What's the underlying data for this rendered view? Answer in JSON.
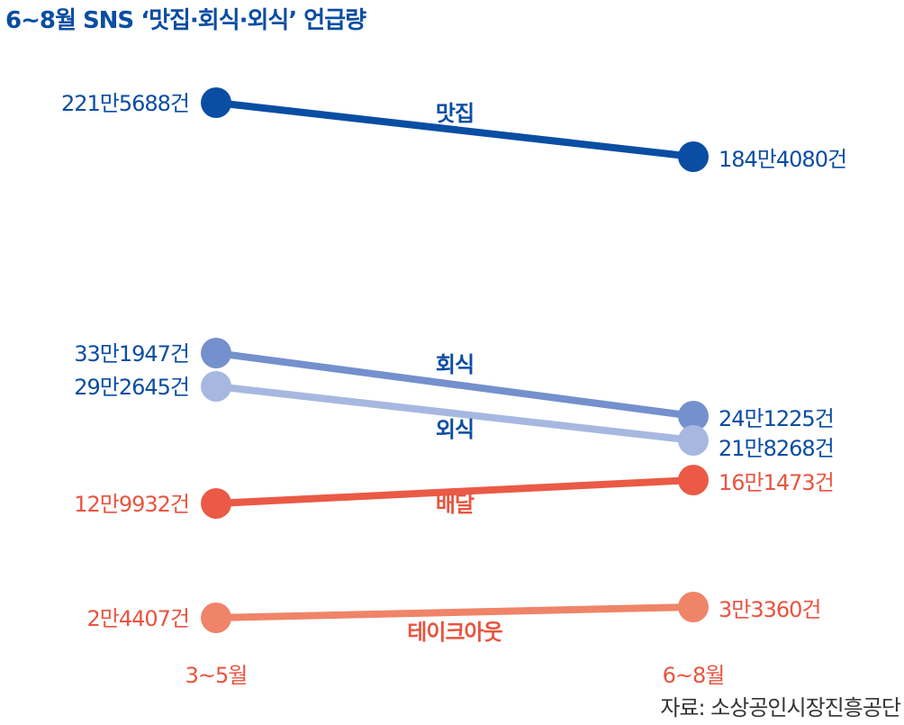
{
  "chart_data": {
    "type": "line",
    "title": "6~8월 SNS ‘맛집·회식·외식’ 언급량",
    "categories": [
      "3~5월",
      "6~8월"
    ],
    "series": [
      {
        "name": "맛집",
        "values": [
          2215688,
          1844080
        ],
        "labels": [
          "221만5688건",
          "184만4080건"
        ],
        "color": "#0a4ea3"
      },
      {
        "name": "회식",
        "values": [
          331947,
          241225
        ],
        "labels": [
          "33만1947건",
          "24만1225건"
        ],
        "color": "#7490cd"
      },
      {
        "name": "외식",
        "values": [
          292645,
          218268
        ],
        "labels": [
          "29만2645건",
          "21만8268건"
        ],
        "color": "#a7b8e0"
      },
      {
        "name": "배달",
        "values": [
          129932,
          161473
        ],
        "labels": [
          "12만9932건",
          "16만1473건"
        ],
        "color": "#ea5a46"
      },
      {
        "name": "테이크아웃",
        "values": [
          24407,
          33360
        ],
        "labels": [
          "2만4407건",
          "3만3360건"
        ],
        "color": "#ef8468"
      }
    ],
    "scale": "non-linear (vertically separated for legibility)",
    "grid": false,
    "legend": "inline labels"
  },
  "source": "자료: 소상공인시장진흥공단",
  "colors": {
    "title": "#0b4da2",
    "value_label_blue": "#0b4da2",
    "category_label": "#ea5a46"
  }
}
